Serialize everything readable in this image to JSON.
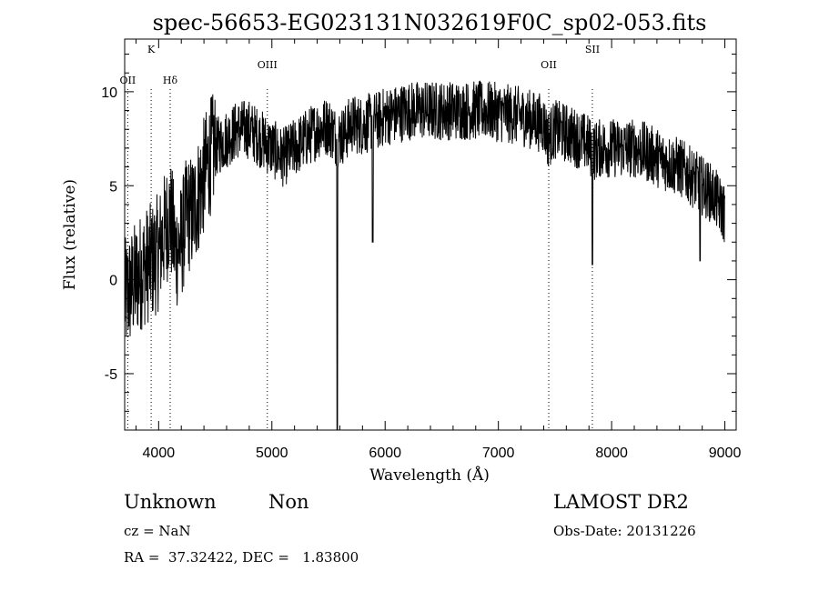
{
  "chart_data": {
    "type": "line",
    "title": "spec-56653-EG023131N032619F0C_sp02-053.fits",
    "xlabel": "Wavelength (Å)",
    "ylabel": "Flux (relative)",
    "xlim": [
      3700,
      9100
    ],
    "ylim": [
      -8,
      12.8
    ],
    "x_ticks": [
      4000,
      5000,
      6000,
      7000,
      8000,
      9000
    ],
    "y_ticks": [
      -5,
      0,
      5,
      10
    ],
    "grid": false,
    "spectral_lines": [
      {
        "name": "OII",
        "wavelength": 3727
      },
      {
        "name": "K",
        "wavelength": 3934
      },
      {
        "name": "Hδ",
        "wavelength": 4102
      },
      {
        "name": "OIII",
        "wavelength": 4960
      },
      {
        "name": "OII",
        "wavelength": 7445
      },
      {
        "name": "SII",
        "wavelength": 7830
      }
    ],
    "series": [
      {
        "x": [
          3700,
          3750,
          3800,
          3850,
          3900,
          3950,
          4000,
          4050,
          4100,
          4150,
          4200,
          4250,
          4300,
          4350,
          4400,
          4450,
          4500,
          4600,
          4700,
          4800,
          4900,
          5000,
          5100,
          5200,
          5300,
          5400,
          5500,
          5580,
          5650,
          5700,
          5800,
          5880,
          5950,
          6000,
          6100,
          6200,
          6300,
          6400,
          6500,
          6600,
          6700,
          6800,
          6900,
          7000,
          7100,
          7200,
          7300,
          7400,
          7440,
          7500,
          7600,
          7700,
          7800,
          7830,
          7900,
          8000,
          8100,
          8200,
          8300,
          8400,
          8500,
          8600,
          8700,
          8800,
          8900,
          9000
        ],
        "y": [
          -1,
          -0.5,
          0,
          0.5,
          0.8,
          1,
          1.5,
          2.5,
          3.5,
          1.5,
          2,
          3.5,
          3.5,
          4.5,
          5.5,
          6.5,
          7,
          7.5,
          8,
          8,
          7.5,
          7,
          6.5,
          7,
          7.5,
          8,
          8.2,
          7.5,
          7.8,
          8.3,
          8.2,
          8.4,
          8.5,
          8.7,
          8.8,
          9,
          9,
          9,
          9,
          9,
          9,
          9,
          9,
          8.9,
          8.8,
          8.7,
          8.5,
          8.3,
          7.5,
          8,
          7.8,
          7.5,
          7.2,
          6.8,
          7,
          7,
          7,
          7,
          6.8,
          6.5,
          6.2,
          6,
          5.5,
          5,
          4.5,
          3.5
        ]
      }
    ]
  },
  "footer": {
    "object_class": "Unknown",
    "subclass": "Non",
    "survey": "LAMOST DR2",
    "cz": "cz = NaN",
    "obs_date": "Obs-Date: 20131226",
    "coords": "RA =  37.32422, DEC =   1.83800"
  }
}
